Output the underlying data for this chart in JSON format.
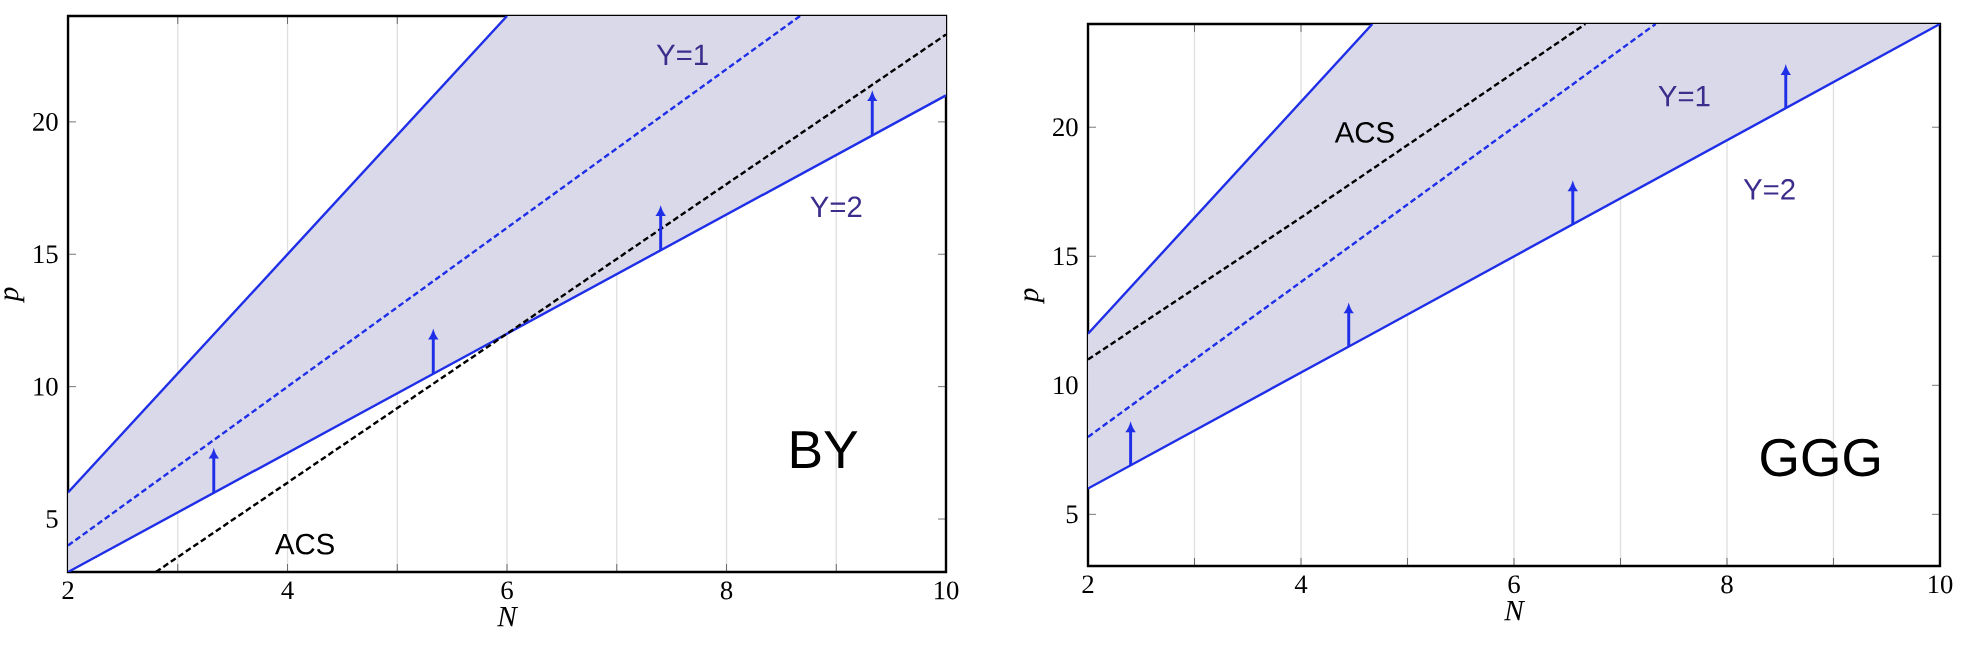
{
  "chart_data": [
    {
      "type": "line",
      "xlabel": "N",
      "ylabel": "p",
      "xlim": [
        2,
        10
      ],
      "ylim": [
        3,
        24
      ],
      "xticks": [
        2,
        {
          "value": 3,
          "label": null
        },
        4,
        {
          "value": 5,
          "label": null
        },
        6,
        {
          "value": 7,
          "label": null
        },
        8,
        {
          "value": 9,
          "label": null
        },
        10
      ],
      "yticks": [
        5,
        10,
        15,
        20
      ],
      "grid": "x",
      "series": [
        {
          "line_style": "solid",
          "color": "#1f2fe8",
          "x": [
            2,
            6,
            10
          ],
          "values": [
            3,
            12,
            21
          ],
          "lower": [
            3,
            12,
            21
          ],
          "upper": [
            6,
            24,
            24
          ]
        },
        {
          "line_style": "solid",
          "color": "#1f2fe8",
          "x": [
            2,
            6
          ],
          "values": [
            6,
            24
          ]
        },
        {
          "line_style": "dashed",
          "color": "#1f2fe8",
          "x": [
            2,
            6,
            8.67
          ],
          "values": [
            4,
            16,
            24
          ]
        },
        {
          "line_style": "dashed",
          "color": "#000000",
          "x": [
            2.8,
            6,
            10
          ],
          "values": [
            3,
            12,
            23.3
          ]
        }
      ],
      "annotations": [
        "Υ=1",
        "Υ=2",
        "ACS",
        "BY"
      ]
    },
    {
      "type": "line",
      "xlabel": "N",
      "ylabel": "p",
      "xlim": [
        2,
        10
      ],
      "ylim": [
        3,
        24
      ],
      "xticks": [
        2,
        {
          "value": 3,
          "label": null
        },
        4,
        {
          "value": 5,
          "label": null
        },
        6,
        {
          "value": 7,
          "label": null
        },
        8,
        {
          "value": 9,
          "label": null
        },
        10
      ],
      "yticks": [
        5,
        10,
        15,
        20
      ],
      "grid": "x",
      "series": [
        {
          "line_style": "solid",
          "color": "#1f2fe8",
          "x": [
            2,
            4.67,
            10
          ],
          "values": [
            6,
            12,
            24
          ],
          "lower": [
            6,
            12,
            24
          ],
          "upper": [
            12,
            24,
            24
          ]
        },
        {
          "line_style": "solid",
          "color": "#1f2fe8",
          "x": [
            2,
            4.67
          ],
          "values": [
            12,
            24
          ]
        },
        {
          "line_style": "dashed",
          "color": "#1f2fe8",
          "x": [
            2,
            7.33
          ],
          "values": [
            8,
            24
          ]
        },
        {
          "line_style": "dashed",
          "color": "#000000",
          "x": [
            2,
            4,
            6.67
          ],
          "values": [
            11,
            16.5,
            24
          ]
        }
      ],
      "annotations": [
        "ACS",
        "Υ=1",
        "Υ=2",
        "GGG"
      ]
    }
  ]
}
